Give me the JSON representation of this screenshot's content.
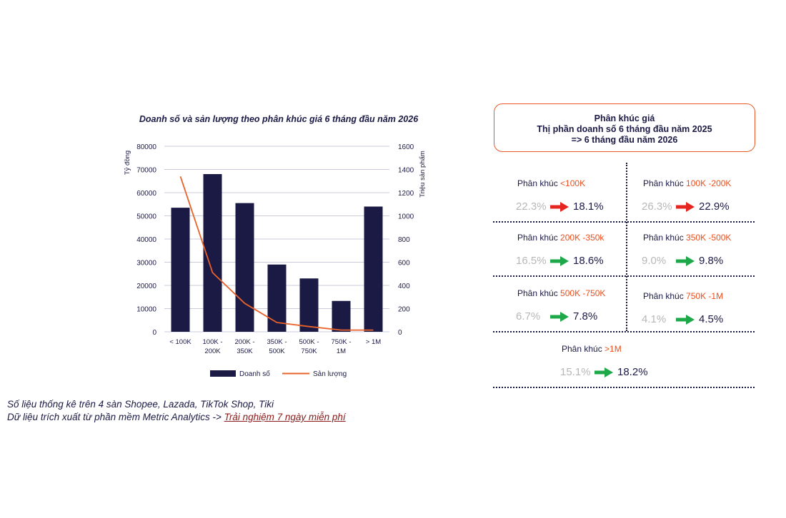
{
  "colors": {
    "bar": "#1b1a45",
    "line": "#e8622a",
    "accent": "#e8501f",
    "down": "#e52620",
    "up": "#1ea84a"
  },
  "chart_data": {
    "type": "bar",
    "title": "Doanh số và sản lượng theo phân khúc giá 6 tháng đầu năm 2026",
    "ylabel": "Tỷ đồng",
    "y2label": "Triệu sản phẩm",
    "ylim": [
      0,
      80000
    ],
    "y2lim": [
      0,
      1600
    ],
    "yticks": [
      "80000",
      "70000",
      "60000",
      "50000",
      "40000",
      "30000",
      "20000",
      "10000",
      "0"
    ],
    "y2ticks": [
      "1600",
      "1400",
      "1200",
      "1000",
      "800",
      "600",
      "400",
      "200",
      "0"
    ],
    "categories": [
      [
        "< 100K"
      ],
      [
        "100K -",
        "200K"
      ],
      [
        "200K -",
        "350K"
      ],
      [
        "350K -",
        "500K"
      ],
      [
        "500K -",
        "750K"
      ],
      [
        "750K -",
        "1M"
      ],
      [
        "> 1M"
      ]
    ],
    "series": [
      {
        "name": "Doanh số",
        "type": "bar",
        "axis": "left",
        "values": [
          53500,
          68000,
          55500,
          29000,
          23000,
          13300,
          54000
        ]
      },
      {
        "name": "Sản lượng",
        "type": "line",
        "axis": "right",
        "values": [
          1340,
          510,
          245,
          80,
          45,
          15,
          15
        ]
      }
    ],
    "legend": "bottom",
    "grid": true
  },
  "notes": {
    "line1": "Số liệu thống kê trên 4 sàn Shopee, Lazada, TikTok Shop, Tiki",
    "line2_prefix": "Dữ liệu trích xuất từ phần mềm Metric Analytics -> ",
    "line2_link": "Trải nghiệm 7 ngày miễn phí"
  },
  "share_panel": {
    "title_line1": "Phân khúc giá",
    "title_line2": "Thị phần doanh số 6 tháng đầu năm 2025",
    "title_line3": "=> 6 tháng đầu năm 2026",
    "segments": [
      {
        "prefix": "Phân khúc ",
        "range": "<100K",
        "old": "22.3%",
        "new": "18.1%",
        "trend": "down"
      },
      {
        "prefix": "Phân khúc ",
        "range": "100K -200K",
        "old": "26.3%",
        "new": "22.9%",
        "trend": "down"
      },
      {
        "prefix": "Phân khúc ",
        "range": "200K -350k",
        "old": "16.5%",
        "new": "18.6%",
        "trend": "up"
      },
      {
        "prefix": "Phân khúc ",
        "range": "350K -500K",
        "old": "9.0%",
        "new": "9.8%",
        "trend": "up"
      },
      {
        "prefix": "Phân khúc ",
        "range": "500K -750K",
        "old": "6.7%",
        "new": "7.8%",
        "trend": "up"
      },
      {
        "prefix": "Phân khúc ",
        "range": "750K -1M",
        "old": "4.1%",
        "new": "4.5%",
        "trend": "up"
      },
      {
        "prefix": "Phân khúc ",
        "range": ">1M",
        "old": "15.1%",
        "new": "18.2%",
        "trend": "up"
      }
    ]
  }
}
